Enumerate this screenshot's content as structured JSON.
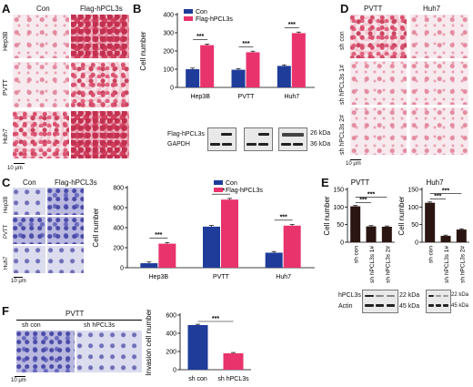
{
  "panels": {
    "A": {
      "label": "A",
      "col_con": "Con",
      "col_flag": "Flag-hPCL3s",
      "rows": [
        "Hep3B",
        "PVTT",
        "Huh7"
      ],
      "scale": "10 μm"
    },
    "B": {
      "label": "B",
      "blot_labels": [
        "Flag-hPCL3s",
        "GAPDH"
      ],
      "kda": [
        "26 kDa",
        "36 kDa"
      ]
    },
    "C": {
      "label": "C",
      "col_con": "Con",
      "col_flag": "Flag-hPCL3s",
      "rows": [
        "Hep3B",
        "PVTT",
        "Huh7"
      ],
      "scale": "10 μm"
    },
    "D": {
      "label": "D",
      "cols": [
        "PVTT",
        "Huh7"
      ],
      "rows": [
        "sh con",
        "sh hPCL3s 1#",
        "sh hPCL3s 2#"
      ],
      "scale": "10 μm"
    },
    "E": {
      "label": "E",
      "blot_labels": [
        "hPCL3s",
        "Actin"
      ],
      "kda_left": [
        "22 kDa",
        "45 kDa"
      ],
      "kda_right": [
        "22 kDa",
        "45 kDa"
      ]
    },
    "F": {
      "label": "F",
      "title": "PVTT",
      "cols": [
        "sh con",
        "sh hPCL3s"
      ],
      "scale": "10 μm"
    }
  },
  "chart_data": [
    {
      "id": "B",
      "type": "bar",
      "ylabel": "Cell number",
      "ylim": [
        0,
        400
      ],
      "yticks": [
        0,
        100,
        200,
        300,
        400
      ],
      "categories": [
        "Hep3B",
        "PVTT",
        "Huh7"
      ],
      "series": [
        {
          "name": "Con",
          "color": "#1f3c9a",
          "values": [
            100,
            97,
            118
          ]
        },
        {
          "name": "Flag-hPCL3s",
          "color": "#e8336d",
          "values": [
            232,
            193,
            298
          ]
        }
      ],
      "sig": "***"
    },
    {
      "id": "C",
      "type": "bar",
      "ylabel": "Cell number",
      "ylim": [
        0,
        800
      ],
      "yticks": [
        0,
        200,
        400,
        600,
        800
      ],
      "categories": [
        "Hep3B",
        "PVTT",
        "Huh7"
      ],
      "series": [
        {
          "name": "Con",
          "color": "#1f3c9a",
          "values": [
            45,
            410,
            150
          ]
        },
        {
          "name": "Flag-hPCL3s",
          "color": "#e8336d",
          "values": [
            240,
            680,
            420
          ]
        }
      ],
      "sig": "***"
    },
    {
      "id": "E1",
      "type": "bar",
      "title": "PVTT",
      "ylabel": "Cell number",
      "ylim": [
        0,
        150
      ],
      "yticks": [
        0,
        50,
        100,
        150
      ],
      "categories": [
        "sh con",
        "sh hPCL3s 1#",
        "sh hPCL3s 2#"
      ],
      "series": [
        {
          "name": "",
          "color": "#2a1512",
          "values": [
            102,
            45,
            44
          ]
        }
      ],
      "sig": "***"
    },
    {
      "id": "E2",
      "type": "bar",
      "title": "Huh7",
      "ylabel": "Cell number",
      "ylim": [
        0,
        150
      ],
      "yticks": [
        0,
        50,
        100,
        150
      ],
      "categories": [
        "sh con",
        "sh hPCL3s 1#",
        "sh hPCL3s 2#"
      ],
      "series": [
        {
          "name": "",
          "color": "#2a1512",
          "values": [
            112,
            18,
            36
          ]
        }
      ],
      "sig": "***"
    },
    {
      "id": "F",
      "type": "bar",
      "ylabel": "Invasion cell number",
      "ylim": [
        0,
        600
      ],
      "yticks": [
        0,
        200,
        400,
        600
      ],
      "categories": [
        "sh con",
        "sh hPCL3s"
      ],
      "series": [
        {
          "name": "",
          "colors": [
            "#1f3c9a",
            "#e8336d"
          ],
          "values": [
            490,
            180
          ]
        }
      ],
      "sig": "***"
    }
  ]
}
